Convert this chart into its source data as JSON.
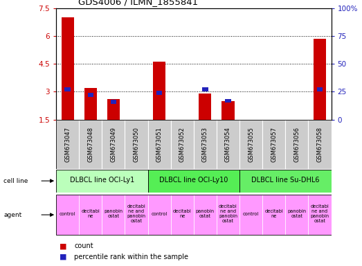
{
  "title": "GDS4006 / ILMN_1855841",
  "samples": [
    "GSM673047",
    "GSM673048",
    "GSM673049",
    "GSM673050",
    "GSM673051",
    "GSM673052",
    "GSM673053",
    "GSM673054",
    "GSM673055",
    "GSM673057",
    "GSM673056",
    "GSM673058"
  ],
  "red_values": [
    7.0,
    3.2,
    2.6,
    1.5,
    4.6,
    1.5,
    2.9,
    2.5,
    1.5,
    1.5,
    1.5,
    5.85
  ],
  "blue_values": [
    27,
    22,
    16,
    0,
    24,
    0,
    27,
    17,
    0,
    0,
    0,
    27
  ],
  "ylim_left": [
    1.5,
    7.5
  ],
  "ylim_right": [
    0,
    100
  ],
  "yticks_left": [
    1.5,
    3.0,
    4.5,
    6.0,
    7.5
  ],
  "yticks_right": [
    0,
    25,
    50,
    75,
    100
  ],
  "ytick_labels_left": [
    "1.5",
    "3",
    "4.5",
    "6",
    "7.5"
  ],
  "ytick_labels_right": [
    "0",
    "25",
    "50",
    "75",
    "100%"
  ],
  "groups": [
    {
      "label": "DLBCL line OCI-Ly1",
      "cols": [
        0,
        1,
        2,
        3
      ],
      "color": "#bbffbb"
    },
    {
      "label": "DLBCL line OCI-Ly10",
      "cols": [
        4,
        5,
        6,
        7
      ],
      "color": "#55ee55"
    },
    {
      "label": "DLBCL line Su-DHL6",
      "cols": [
        8,
        9,
        10,
        11
      ],
      "color": "#66ee66"
    }
  ],
  "agents": [
    "control",
    "decitabi\nne",
    "panobin\nostat",
    "decitabi\nne and\npanobin\nostat",
    "control",
    "decitabi\nne",
    "panobin\nostat",
    "decitabi\nne and\npanobin\nostat",
    "control",
    "decitabi\nne",
    "panobin\nostat",
    "decitabi\nne and\npanobin\nostat"
  ],
  "agent_color": "#ff99ff",
  "tick_bg_color": "#cccccc",
  "bar_width": 0.55,
  "red_color": "#cc0000",
  "blue_color": "#2222bb",
  "legend_red": "count",
  "legend_blue": "percentile rank within the sample",
  "blue_bar_width": 0.25,
  "cell_line_label": "cell line",
  "agent_label": "agent"
}
